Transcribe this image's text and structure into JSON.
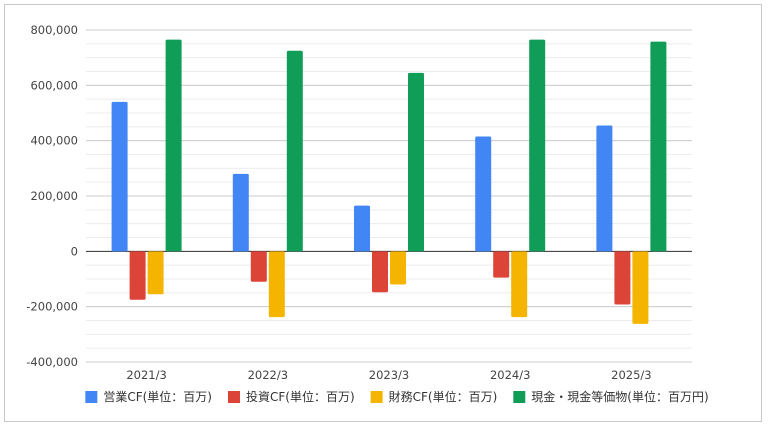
{
  "chart_data": {
    "type": "bar",
    "title": "",
    "xlabel": "",
    "ylabel": "",
    "ylim": [
      -400000,
      800000
    ],
    "yticks": [
      800000,
      600000,
      400000,
      200000,
      0,
      -200000,
      -400000
    ],
    "ytick_labels": [
      "800,000",
      "600,000",
      "400,000",
      "200,000",
      "0",
      "-200,000",
      "-400,000"
    ],
    "categories": [
      "2021/3",
      "2022/3",
      "2023/3",
      "2024/3",
      "2025/3"
    ],
    "grid": true,
    "legend_position": "bottom",
    "series": [
      {
        "name": "営業CF(単位：百万)",
        "color": "#4285F4",
        "values": [
          540000,
          280000,
          165000,
          415000,
          455000
        ]
      },
      {
        "name": "投資CF(単位：百万)",
        "color": "#DB4437",
        "values": [
          -175000,
          -110000,
          -148000,
          -95000,
          -192000
        ]
      },
      {
        "name": "財務CF(単位：百万)",
        "color": "#F4B400",
        "values": [
          -155000,
          -238000,
          -120000,
          -238000,
          -262000
        ]
      },
      {
        "name": "現金・現金等価物(単位：百万円)",
        "color": "#0F9D58",
        "values": [
          765000,
          725000,
          645000,
          765000,
          758000
        ]
      }
    ]
  }
}
